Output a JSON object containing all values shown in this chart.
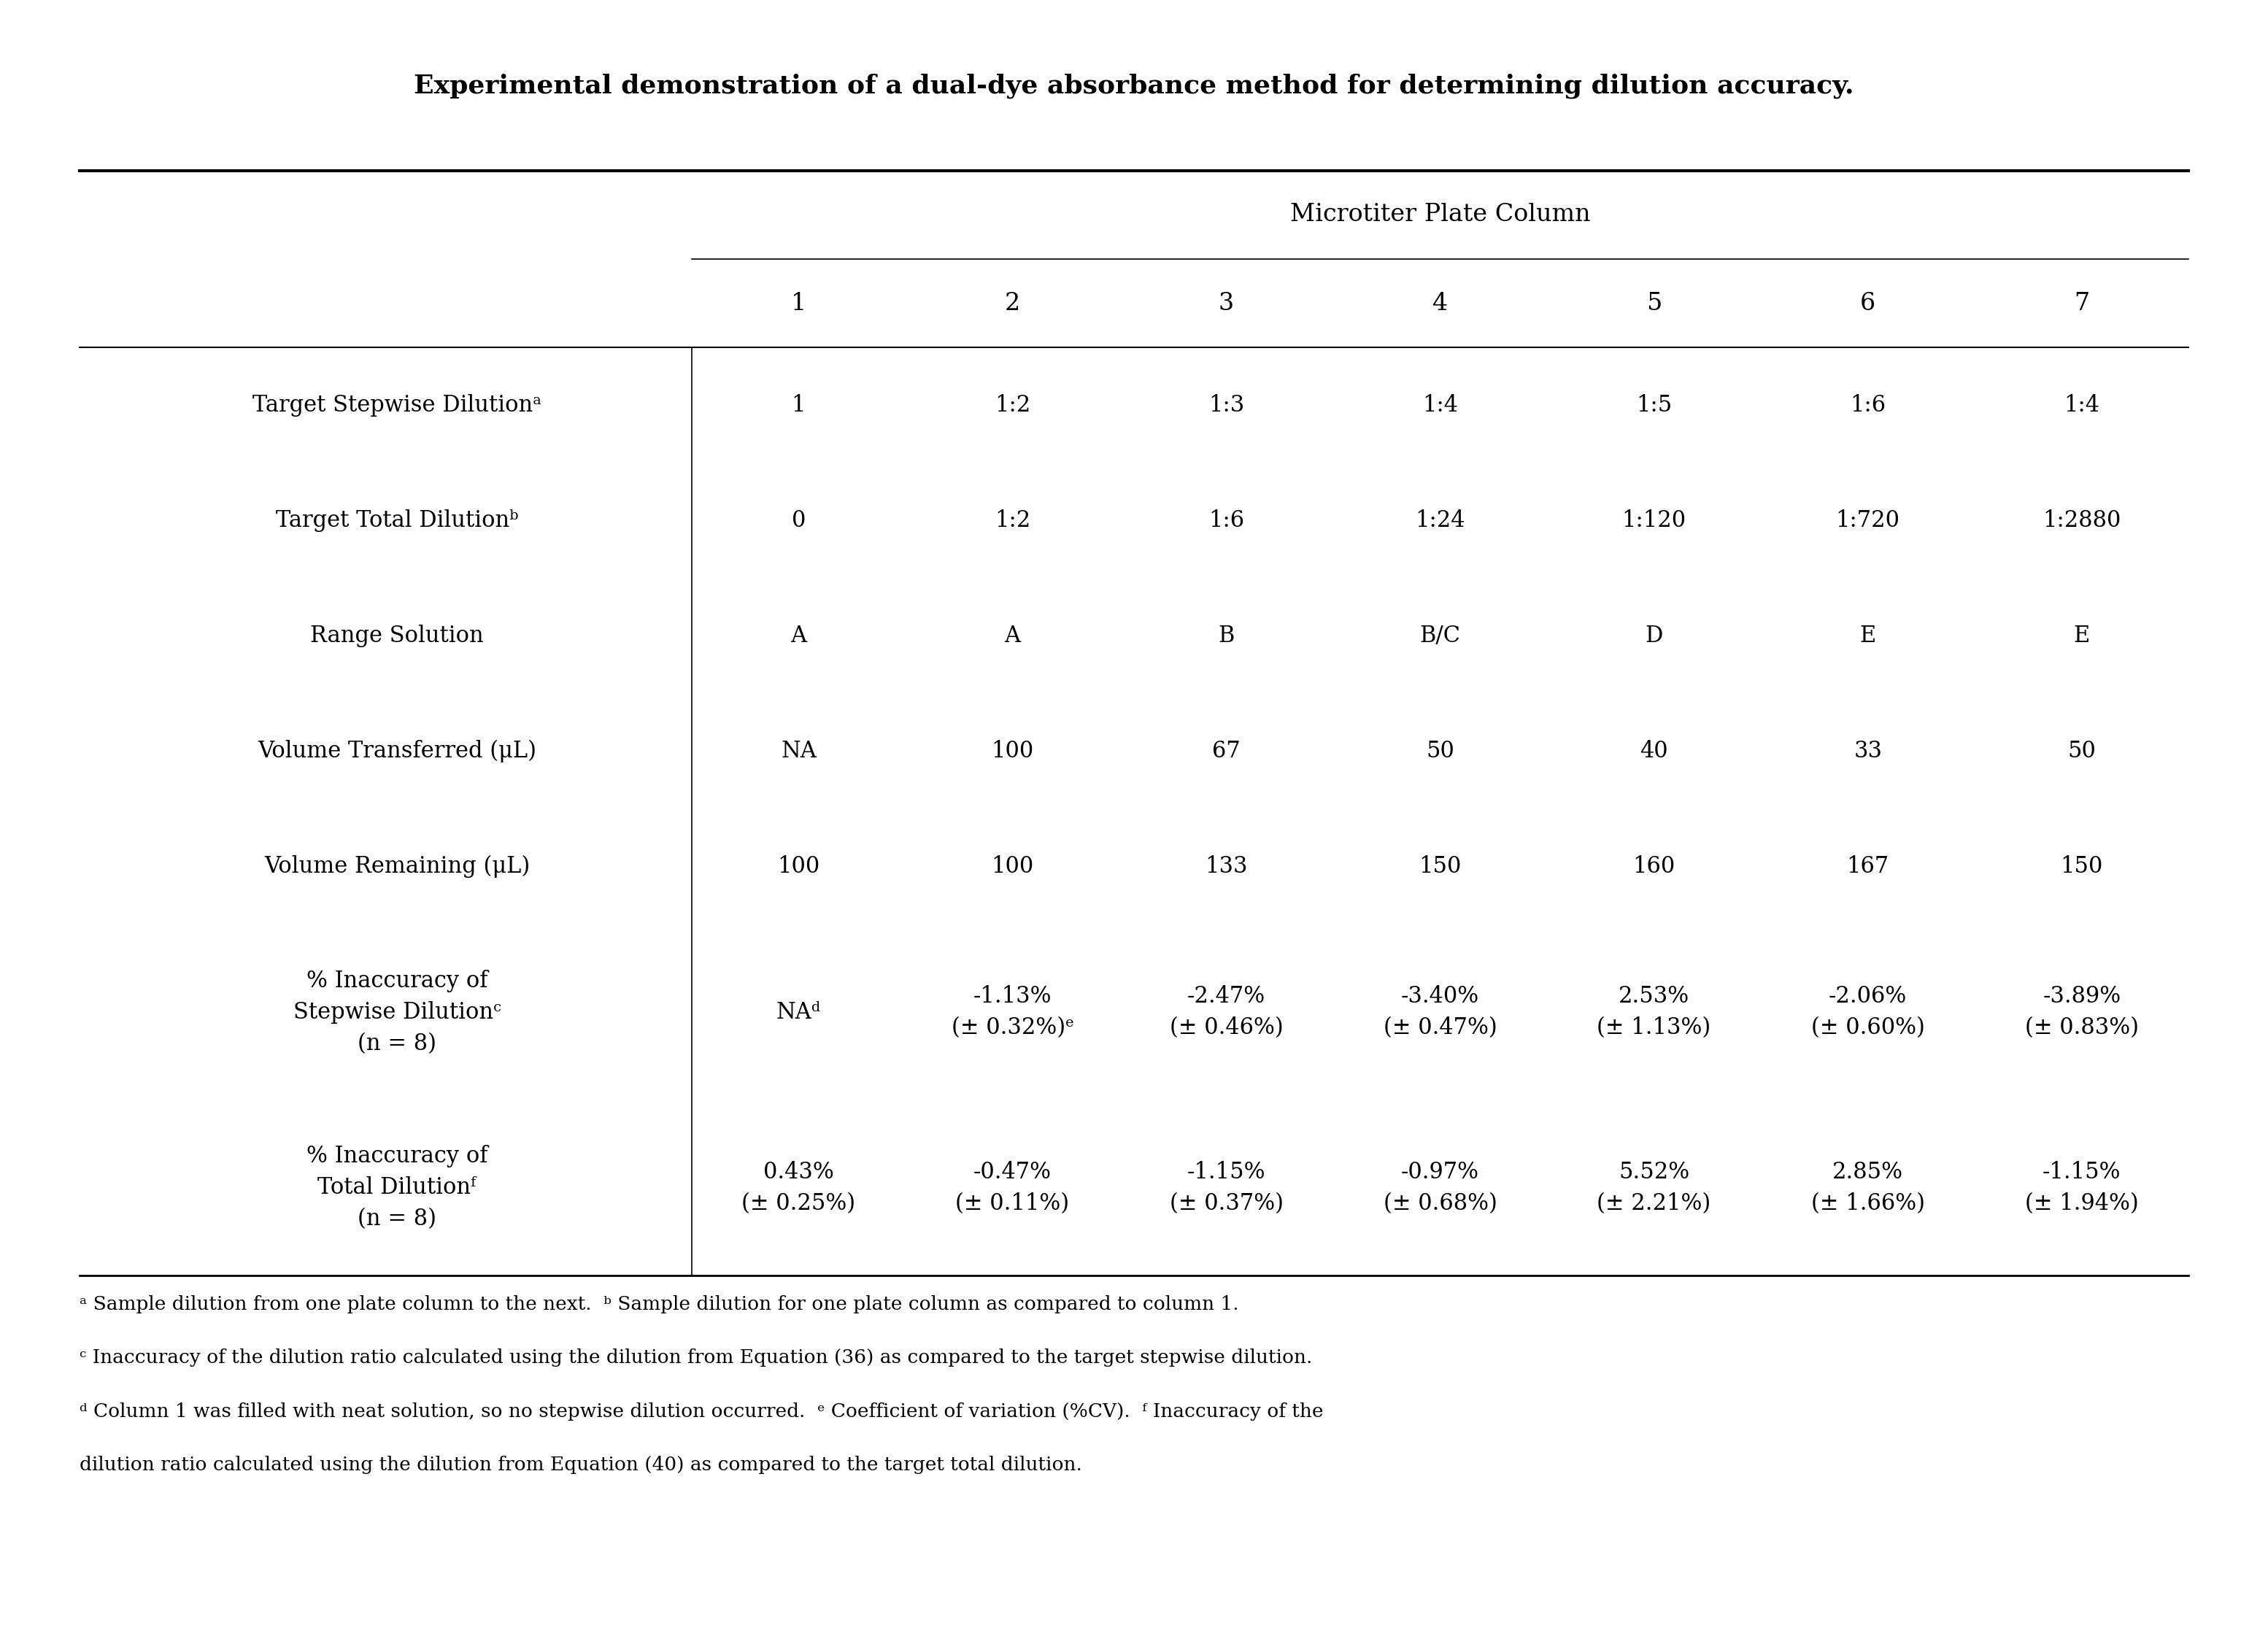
{
  "title": "Experimental demonstration of a dual-dye absorbance method for determining dilution accuracy.",
  "header_group": "Microtiter Plate Column",
  "columns": [
    "1",
    "2",
    "3",
    "4",
    "5",
    "6",
    "7"
  ],
  "row_labels": [
    "Target Stepwise Dilutionᵃ",
    "Target Total Dilutionᵇ",
    "Range Solution",
    "Volume Transferred (μL)",
    "Volume Remaining (μL)",
    "% Inaccuracy of\nStepwise Dilutionᶜ\n(n = 8)",
    "% Inaccuracy of\nTotal Dilutionᶠ\n(n = 8)"
  ],
  "table_data": [
    [
      "1",
      "1:2",
      "1:3",
      "1:4",
      "1:5",
      "1:6",
      "1:4"
    ],
    [
      "0",
      "1:2",
      "1:6",
      "1:24",
      "1:120",
      "1:720",
      "1:2880"
    ],
    [
      "A",
      "A",
      "B",
      "B/C",
      "D",
      "E",
      "E"
    ],
    [
      "NA",
      "100",
      "67",
      "50",
      "40",
      "33",
      "50"
    ],
    [
      "100",
      "100",
      "133",
      "150",
      "160",
      "167",
      "150"
    ],
    [
      "NAᵈ",
      "-1.13%\n(± 0.32%)ᵉ",
      "-2.47%\n(± 0.46%)",
      "-3.40%\n(± 0.47%)",
      "2.53%\n(± 1.13%)",
      "-2.06%\n(± 0.60%)",
      "-3.89%\n(± 0.83%)"
    ],
    [
      "0.43%\n(± 0.25%)",
      "-0.47%\n(± 0.11%)",
      "-1.15%\n(± 0.37%)",
      "-0.97%\n(± 0.68%)",
      "5.52%\n(± 2.21%)",
      "2.85%\n(± 1.66%)",
      "-1.15%\n(± 1.94%)"
    ]
  ],
  "footnotes": [
    "ᵃ Sample dilution from one plate column to the next.  ᵇ Sample dilution for one plate column as compared to column 1.",
    "ᶜ Inaccuracy of the dilution ratio calculated using the dilution from Equation (36) as compared to the target stepwise dilution.",
    "ᵈ Column 1 was filled with neat solution, so no stepwise dilution occurred.  ᵉ Coefficient of variation (%CV).  ᶠ Inaccuracy of the",
    "dilution ratio calculated using the dilution from Equation (40) as compared to the target total dilution."
  ],
  "bg_color": "#ffffff",
  "text_color": "#000000",
  "title_fontsize": 26,
  "header_fontsize": 24,
  "col_fontsize": 24,
  "cell_fontsize": 22,
  "footnote_fontsize": 19,
  "figsize": [
    31.08,
    22.27
  ]
}
